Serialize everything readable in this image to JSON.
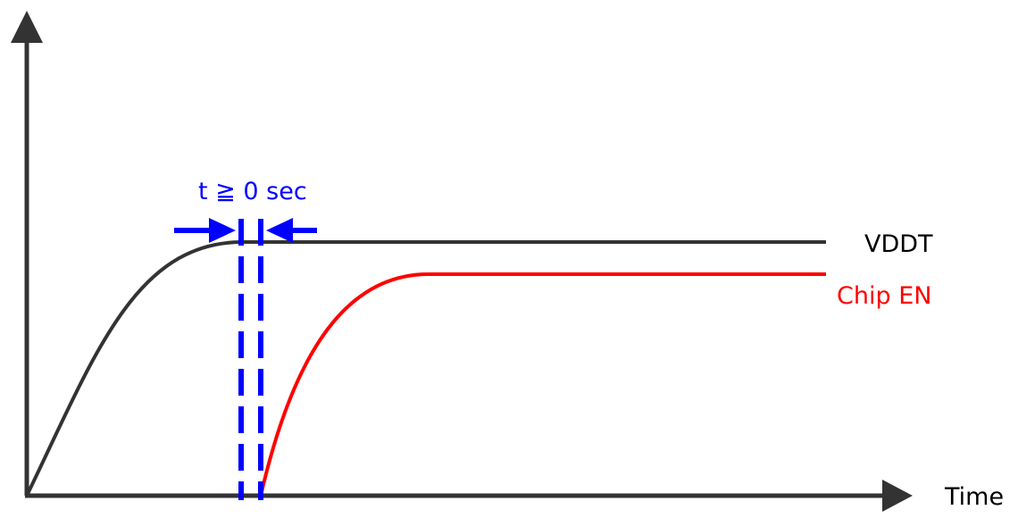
{
  "diagram": {
    "x_axis_label": "Time",
    "timing_label": "t ≧ 0 sec",
    "signals": [
      {
        "name": "VDDT",
        "color": "#333333"
      },
      {
        "name": "Chip EN",
        "color": "#ff0000"
      }
    ],
    "axis_color": "#333333",
    "marker_color": "#0000ff"
  }
}
